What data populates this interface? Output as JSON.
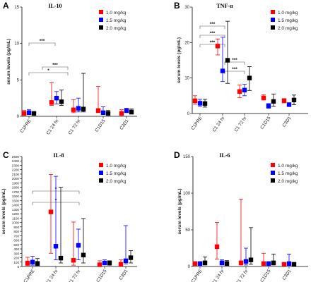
{
  "figure": {
    "panel_labels": [
      "A",
      "B",
      "C",
      "D"
    ]
  },
  "chart_data": [
    {
      "panel": "A",
      "type": "scatter",
      "title": "IL-10",
      "ylabel": "serum levels (pg/mL)",
      "xlabel": "",
      "categories": [
        "C1PRE",
        "C1 24 hr",
        "C1 72 hr",
        "C1D15",
        "C3D1"
      ],
      "ylim": [
        0,
        15
      ],
      "yticks": [
        "0",
        "5",
        "10",
        "15"
      ],
      "legend_position": "top-right",
      "series": [
        {
          "name": "1.0 mg/kg",
          "color": "#ff0000",
          "values": [
            0.4,
            1.9,
            0.9,
            0.8,
            0.4
          ],
          "err_low": [
            0.2,
            1.5,
            0.5,
            0.5,
            0.3
          ],
          "err_high": [
            0.8,
            4.6,
            2.3,
            4.1,
            0.9
          ]
        },
        {
          "name": "1.5 mg/kg",
          "color": "#0000ff",
          "values": [
            0.5,
            2.5,
            1.1,
            0.5,
            0.8
          ],
          "err_low": [
            0.3,
            1.7,
            0.6,
            0.3,
            0.5
          ],
          "err_high": [
            0.9,
            3.4,
            2.5,
            1.3,
            1.1
          ]
        },
        {
          "name": "2.0 mg/kg",
          "color": "#000000",
          "values": [
            0.4,
            2.0,
            1.0,
            0.4,
            0.6
          ],
          "err_low": [
            0.3,
            1.5,
            0.6,
            0.3,
            0.3
          ],
          "err_high": [
            0.6,
            3.6,
            5.9,
            0.8,
            1.0
          ]
        }
      ],
      "significance": [
        {
          "from": 1,
          "to": 2,
          "label": "***"
        },
        {
          "from": 0,
          "to": 1,
          "label": "***"
        },
        {
          "from": 0,
          "to": 2,
          "label": "*"
        }
      ]
    },
    {
      "panel": "B",
      "type": "scatter",
      "title": "TNF-α",
      "ylabel": "serum levels (pg/mL)",
      "xlabel": "",
      "categories": [
        "C1PRE",
        "C1 24 hr",
        "C1 72 hr",
        "C1D15",
        "C3D1"
      ],
      "ylim": [
        0,
        30
      ],
      "yticks": [
        "0",
        "10",
        "20",
        "30"
      ],
      "legend_position": "top-right",
      "series": [
        {
          "name": "1.0 mg/kg",
          "color": "#ff0000",
          "values": [
            3.6,
            19.0,
            6.2,
            4.4,
            3.6
          ],
          "err_low": [
            2.6,
            16.5,
            4.5,
            3.8,
            3.0
          ],
          "err_high": [
            5.0,
            21.0,
            8.0,
            5.3,
            4.2
          ]
        },
        {
          "name": "1.5 mg/kg",
          "color": "#0000ff",
          "values": [
            2.9,
            12.0,
            6.6,
            2.1,
            2.5
          ],
          "err_low": [
            2.0,
            9.0,
            5.0,
            1.5,
            2.0
          ],
          "err_high": [
            4.0,
            21.5,
            8.2,
            2.8,
            3.0
          ]
        },
        {
          "name": "2.0 mg/kg",
          "color": "#000000",
          "values": [
            2.8,
            15.0,
            10.0,
            3.4,
            3.8
          ],
          "err_low": [
            1.8,
            8.5,
            6.5,
            2.0,
            2.5
          ],
          "err_high": [
            4.0,
            26.0,
            13.2,
            5.5,
            5.2
          ]
        }
      ],
      "significance": [
        {
          "from": 0,
          "to": 1,
          "label": "***"
        },
        {
          "from": 0,
          "to": 1,
          "label": "***"
        },
        {
          "from": 0,
          "to": 1,
          "label": "***"
        },
        {
          "from": 1,
          "to": 2,
          "label": "***"
        },
        {
          "from": 1,
          "to": 2,
          "label": "***"
        }
      ]
    },
    {
      "panel": "C",
      "type": "scatter",
      "title": "IL-8",
      "ylabel": "serum levels (pg/mL)",
      "xlabel": "",
      "categories": [
        "C1PRE",
        "C1 24 hr",
        "C1 72 hr",
        "C1D15",
        "C3D1"
      ],
      "ylim": [
        0,
        2500
      ],
      "yticks": [
        "0",
        "100",
        "200",
        "300",
        "400",
        "500",
        "600",
        "700",
        "800",
        "900",
        "1000",
        "1100",
        "1200",
        "1300",
        "1400",
        "1500",
        "1600",
        "1700",
        "1800",
        "1900",
        "2000",
        "2100",
        "2200",
        "2300",
        "2400",
        "2500"
      ],
      "legend_position": "top-right",
      "series": [
        {
          "name": "1.0 mg/kg",
          "color": "#ff0000",
          "values": [
            80,
            1240,
            140,
            40,
            50
          ],
          "err_low": [
            20,
            300,
            30,
            10,
            20
          ],
          "err_high": [
            210,
            2090,
            1010,
            130,
            150
          ]
        },
        {
          "name": "1.5 mg/kg",
          "color": "#0000ff",
          "values": [
            100,
            460,
            480,
            80,
            130
          ],
          "err_low": [
            30,
            150,
            150,
            40,
            60
          ],
          "err_high": [
            230,
            2050,
            850,
            150,
            930
          ]
        },
        {
          "name": "2.0 mg/kg",
          "color": "#000000",
          "values": [
            70,
            190,
            260,
            80,
            200
          ],
          "err_low": [
            20,
            80,
            80,
            30,
            80
          ],
          "err_high": [
            180,
            1800,
            1090,
            130,
            360
          ]
        }
      ],
      "significance": [
        {
          "from": 0,
          "to": 2,
          "label": "*"
        },
        {
          "from": 0,
          "to": 2,
          "label": "*"
        }
      ]
    },
    {
      "panel": "D",
      "type": "scatter",
      "title": "IL-6",
      "ylabel": "serum levels (pg/mL)",
      "xlabel": "",
      "categories": [
        "C1PRE",
        "C1 24 hr",
        "C1 72 hr",
        "C1D15",
        "C3D1"
      ],
      "ylim": [
        0,
        150
      ],
      "yticks": [
        "0",
        "50",
        "100",
        "150"
      ],
      "legend_position": "top-right",
      "series": [
        {
          "name": "1.0 mg/kg",
          "color": "#ff0000",
          "values": [
            4,
            27,
            5,
            4,
            3
          ],
          "err_low": [
            2,
            10,
            2,
            2,
            1
          ],
          "err_high": [
            6,
            60,
            92,
            18,
            4
          ]
        },
        {
          "name": "1.5 mg/kg",
          "color": "#0000ff",
          "values": [
            4,
            5,
            7,
            4,
            4
          ],
          "err_low": [
            2,
            2,
            2,
            2,
            2
          ],
          "err_high": [
            6,
            9,
            25,
            6,
            17
          ]
        },
        {
          "name": "2.0 mg/kg",
          "color": "#000000",
          "values": [
            5,
            4,
            9,
            5,
            3
          ],
          "err_low": [
            2,
            2,
            3,
            2,
            1
          ],
          "err_high": [
            13,
            8,
            53,
            17,
            5
          ]
        }
      ],
      "significance": []
    }
  ]
}
